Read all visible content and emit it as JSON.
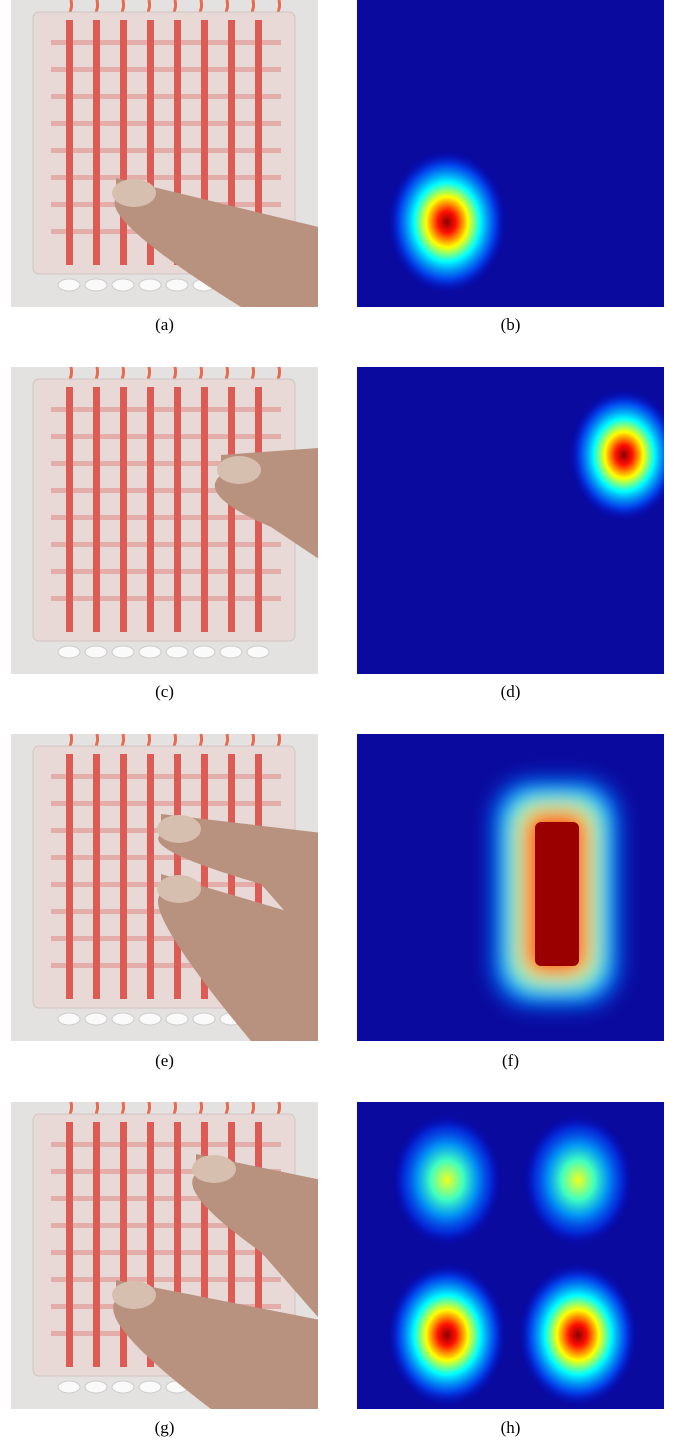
{
  "panels": [
    {
      "caption": "(a)"
    },
    {
      "caption": "(b)"
    },
    {
      "caption": "(c)"
    },
    {
      "caption": "(d)"
    },
    {
      "caption": "(e)"
    },
    {
      "caption": "(f)"
    },
    {
      "caption": "(g)"
    },
    {
      "caption": "(h)"
    }
  ]
}
